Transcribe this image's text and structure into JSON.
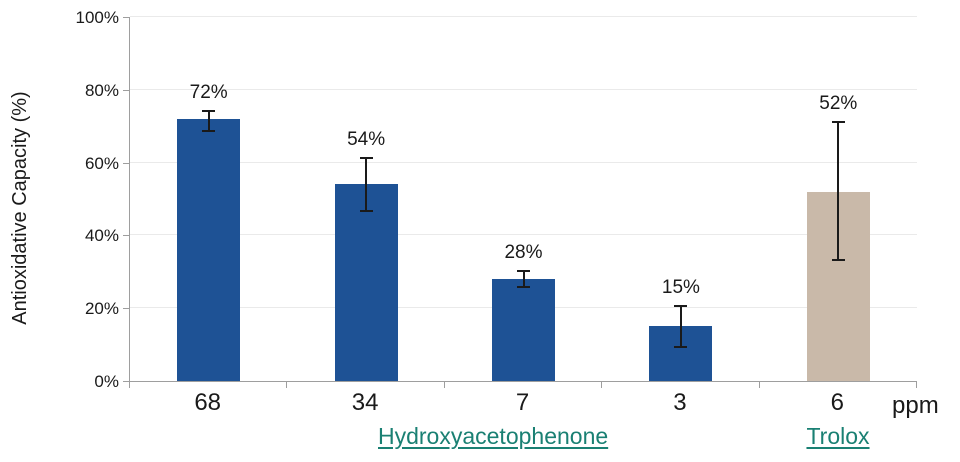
{
  "y_axis": {
    "title": "Antioxidative Capacity (%)",
    "tick_labels": [
      "0%",
      "20%",
      "40%",
      "60%",
      "80%",
      "100%"
    ],
    "min": 0,
    "max": 100
  },
  "x_axis": {
    "unit_label": "ppm"
  },
  "groups": [
    {
      "label": "Hydroxyacetophenone"
    },
    {
      "label": "Trolox"
    }
  ],
  "colors": {
    "hap_bar": "#1e5295",
    "trolox_bar": "#c9b9a9",
    "group_label": "#1a8073",
    "gridline": "#eaeaea",
    "axis": "#9e9e9e",
    "error_bar": "#1a1a1a",
    "text": "#1a1a1a"
  },
  "chart_data": {
    "type": "bar",
    "title": "",
    "ylabel": "Antioxidative Capacity (%)",
    "xlabel_unit": "ppm",
    "ylim": [
      0,
      100
    ],
    "grid": true,
    "legend": "none",
    "categories": [
      "68",
      "34",
      "7",
      "3",
      "6"
    ],
    "category_groups": [
      "Hydroxyacetophenone",
      "Hydroxyacetophenone",
      "Hydroxyacetophenone",
      "Hydroxyacetophenone",
      "Trolox"
    ],
    "values": [
      72,
      54,
      28,
      15,
      52
    ],
    "data_labels": [
      "72%",
      "54%",
      "28%",
      "15%",
      "52%"
    ],
    "error_low": [
      68.5,
      46.5,
      25.5,
      9,
      33
    ],
    "error_high": [
      74.5,
      61.5,
      30.5,
      21,
      71.5
    ],
    "bar_color_keys": [
      "hap_bar",
      "hap_bar",
      "hap_bar",
      "hap_bar",
      "trolox_bar"
    ]
  }
}
